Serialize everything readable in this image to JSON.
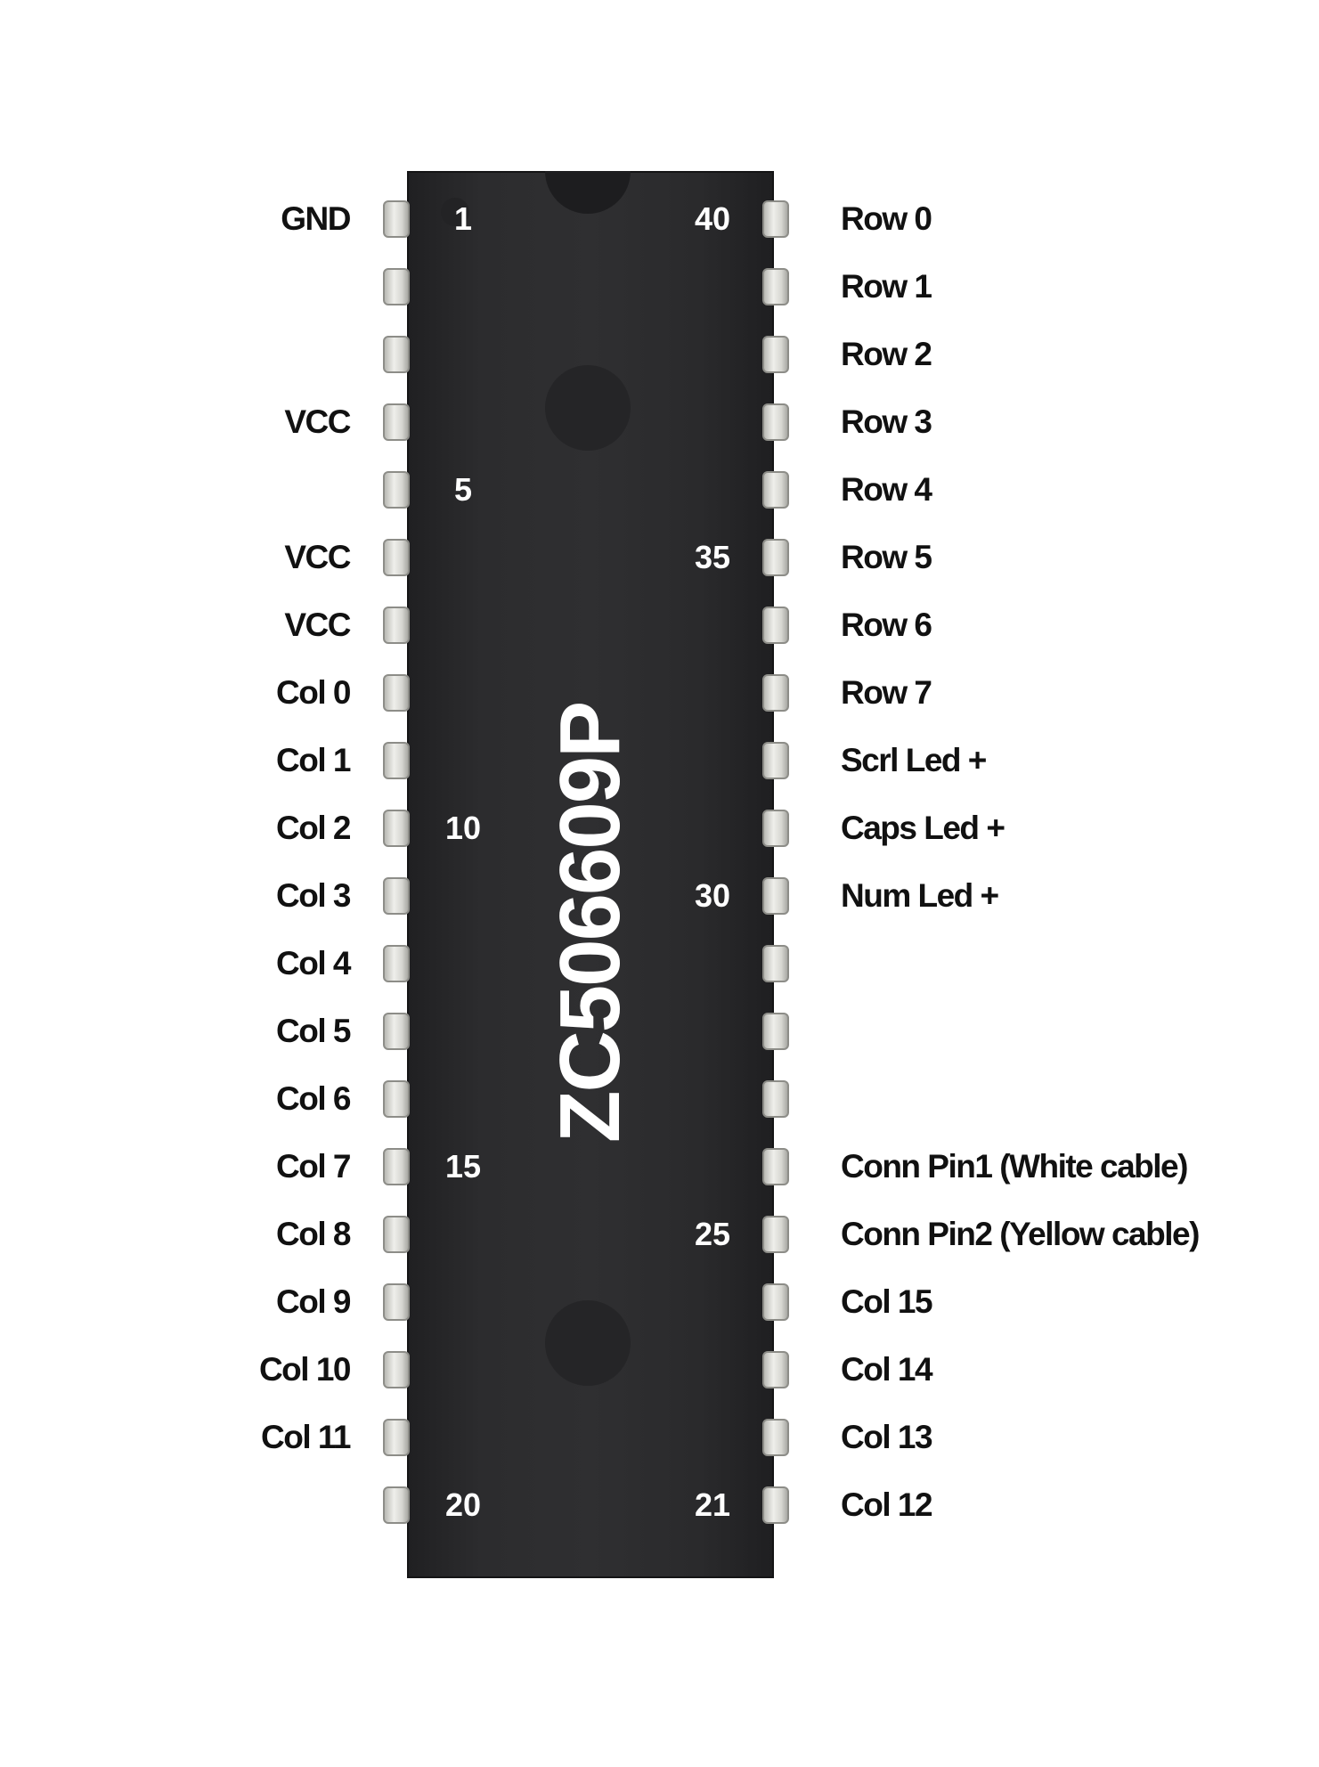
{
  "chip": {
    "part_number": "ZC506609P",
    "pin_count": 40,
    "body_color": "#2c2c2e",
    "pin_color": "#e4e4e0"
  },
  "pin_numbers": {
    "p1": "1",
    "p5": "5",
    "p10": "10",
    "p15": "15",
    "p20": "20",
    "p21": "21",
    "p25": "25",
    "p30": "30",
    "p35": "35",
    "p40": "40"
  },
  "pins": {
    "p1": "GND",
    "p2": "",
    "p3": "",
    "p4": "VCC",
    "p5": "",
    "p6": "VCC",
    "p7": "VCC",
    "p8": "Col 0",
    "p9": "Col 1",
    "p10": "Col 2",
    "p11": "Col 3",
    "p12": "Col 4",
    "p13": "Col 5",
    "p14": "Col 6",
    "p15": "Col 7",
    "p16": "Col 8",
    "p17": "Col 9",
    "p18": "Col 10",
    "p19": "Col 11",
    "p20": "",
    "p21": "Col 12",
    "p22": "Col 13",
    "p23": "Col 14",
    "p24": "Col 15",
    "p25": "Conn Pin2 (Yellow cable)",
    "p26": "Conn Pin1 (White cable)",
    "p27": "",
    "p28": "",
    "p29": "",
    "p30": "Num Led +",
    "p31": "Caps Led +",
    "p32": "Scrl Led +",
    "p33": "Row 7",
    "p34": "Row 6",
    "p35": "Row 5",
    "p36": "Row 4",
    "p37": "Row 3",
    "p38": "Row 2",
    "p39": "Row 1",
    "p40": "Row 0"
  }
}
